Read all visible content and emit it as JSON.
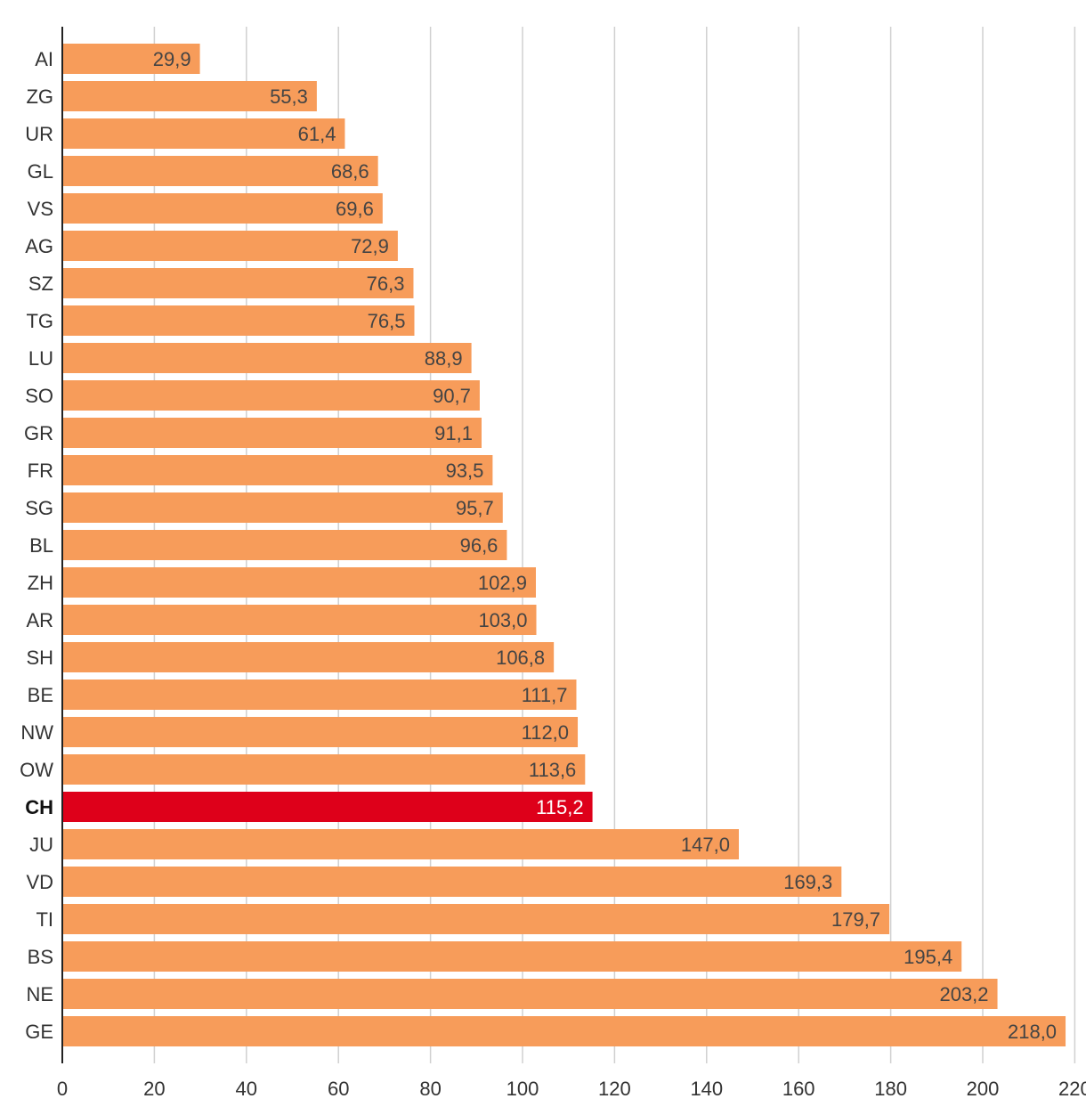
{
  "chart_data": {
    "type": "bar",
    "orientation": "horizontal",
    "title": "",
    "xlabel": "",
    "ylabel": "",
    "xlim": [
      0,
      220
    ],
    "x_ticks": [
      0,
      20,
      40,
      60,
      80,
      100,
      120,
      140,
      160,
      180,
      200,
      220
    ],
    "x_tick_labels": [
      "0",
      "20",
      "40",
      "60",
      "80",
      "100",
      "120",
      "140",
      "160",
      "180",
      "200",
      "220"
    ],
    "grid": "vertical",
    "categories": [
      "AI",
      "ZG",
      "UR",
      "GL",
      "VS",
      "AG",
      "SZ",
      "TG",
      "LU",
      "SO",
      "GR",
      "FR",
      "SG",
      "BL",
      "ZH",
      "AR",
      "SH",
      "BE",
      "NW",
      "OW",
      "CH",
      "JU",
      "VD",
      "TI",
      "BS",
      "NE",
      "GE"
    ],
    "values": [
      29.9,
      55.3,
      61.4,
      68.6,
      69.6,
      72.9,
      76.3,
      76.5,
      88.9,
      90.7,
      91.1,
      93.5,
      95.7,
      96.6,
      102.9,
      103.0,
      106.8,
      111.7,
      112.0,
      113.6,
      115.2,
      147.0,
      169.3,
      179.7,
      195.4,
      203.2,
      218.0
    ],
    "value_labels": [
      "29,9",
      "55,3",
      "61,4",
      "68,6",
      "69,6",
      "72,9",
      "76,3",
      "76,5",
      "88,9",
      "90,7",
      "91,1",
      "93,5",
      "95,7",
      "96,6",
      "102,9",
      "103,0",
      "106,8",
      "111,7",
      "112,0",
      "113,6",
      "115,2",
      "147,0",
      "169,3",
      "179,7",
      "195,4",
      "203,2",
      "218,0"
    ],
    "highlight_category": "CH",
    "colors": {
      "bar": "#f79c5a",
      "highlight": "#de001a",
      "grid": "#d0d0d0",
      "axis": "#222222"
    }
  }
}
